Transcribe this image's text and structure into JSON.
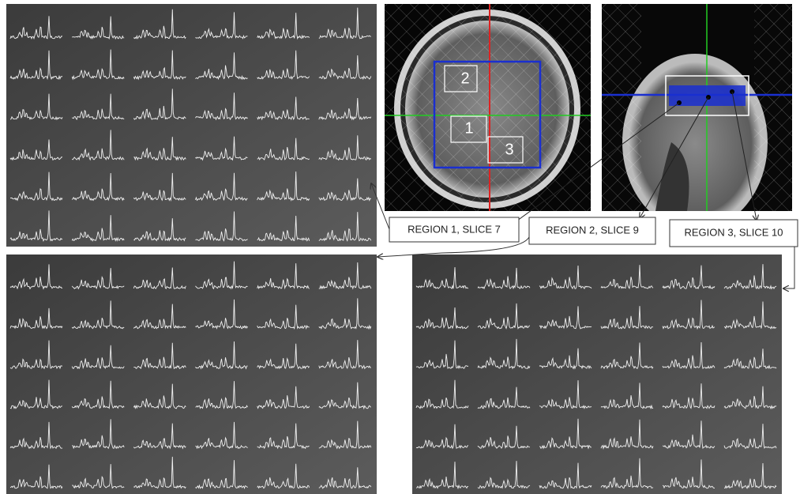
{
  "axial_labels": [
    "2",
    "1",
    "3"
  ],
  "regions": [
    "REGION 1, SLICE 7",
    "REGION 2, SLICE 9",
    "REGION 3, SLICE 10"
  ]
}
